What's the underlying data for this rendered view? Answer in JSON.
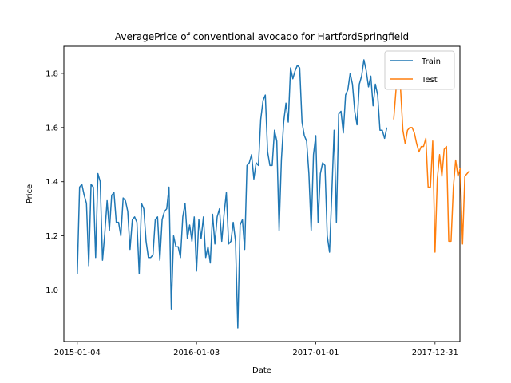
{
  "chart_data": {
    "type": "line",
    "title": "AveragePrice of conventional avocado for HartfordSpringfield",
    "xlabel": "Date",
    "ylabel": "Price",
    "ylim": [
      0.81,
      1.9
    ],
    "xlim": [
      "2014-11-24",
      "2018-03-17"
    ],
    "x_ticks": [
      "2015-01-04",
      "2016-01-03",
      "2017-01-01",
      "2017-12-31"
    ],
    "y_ticks": [
      1.0,
      1.2,
      1.4,
      1.6,
      1.8
    ],
    "y_tick_labels": [
      "1.0",
      "1.2",
      "1.4",
      "1.6",
      "1.8"
    ],
    "legend_position": "top-right",
    "series": [
      {
        "name": "Train",
        "color": "#1f77b4",
        "start_date": "2015-01-04",
        "step_days": 7,
        "values": [
          1.06,
          1.38,
          1.39,
          1.35,
          1.32,
          1.09,
          1.39,
          1.38,
          1.12,
          1.43,
          1.4,
          1.11,
          1.21,
          1.33,
          1.22,
          1.35,
          1.36,
          1.25,
          1.25,
          1.2,
          1.34,
          1.33,
          1.29,
          1.15,
          1.26,
          1.27,
          1.25,
          1.06,
          1.32,
          1.3,
          1.18,
          1.12,
          1.12,
          1.13,
          1.26,
          1.27,
          1.11,
          1.26,
          1.29,
          1.3,
          1.38,
          0.93,
          1.2,
          1.16,
          1.16,
          1.12,
          1.27,
          1.32,
          1.19,
          1.24,
          1.18,
          1.27,
          1.07,
          1.26,
          1.19,
          1.27,
          1.12,
          1.16,
          1.1,
          1.28,
          1.17,
          1.27,
          1.3,
          1.18,
          1.28,
          1.36,
          1.17,
          1.18,
          1.25,
          1.18,
          0.86,
          1.24,
          1.26,
          1.15,
          1.46,
          1.47,
          1.5,
          1.41,
          1.47,
          1.46,
          1.63,
          1.7,
          1.72,
          1.51,
          1.46,
          1.46,
          1.59,
          1.55,
          1.22,
          1.48,
          1.62,
          1.69,
          1.62,
          1.82,
          1.78,
          1.81,
          1.83,
          1.82,
          1.62,
          1.57,
          1.55,
          1.43,
          1.22,
          1.5,
          1.57,
          1.25,
          1.43,
          1.47,
          1.46,
          1.2,
          1.14,
          1.36,
          1.59,
          1.25,
          1.65,
          1.66,
          1.58,
          1.72,
          1.74,
          1.8,
          1.76,
          1.66,
          1.61,
          1.76,
          1.79,
          1.85,
          1.81,
          1.75,
          1.79,
          1.68,
          1.76,
          1.72,
          1.59,
          1.59,
          1.56,
          1.6
        ]
      },
      {
        "name": "Test",
        "color": "#ff7f0e",
        "start_date": "2017-08-27",
        "step_days": 7,
        "values": [
          1.63,
          1.74,
          1.78,
          1.74,
          1.59,
          1.54,
          1.59,
          1.6,
          1.6,
          1.58,
          1.54,
          1.51,
          1.53,
          1.53,
          1.56,
          1.38,
          1.38,
          1.55,
          1.14,
          1.41,
          1.5,
          1.42,
          1.52,
          1.53,
          1.18,
          1.18,
          1.38,
          1.48,
          1.42,
          1.45,
          1.17,
          1.42,
          1.43,
          1.44
        ]
      }
    ]
  }
}
